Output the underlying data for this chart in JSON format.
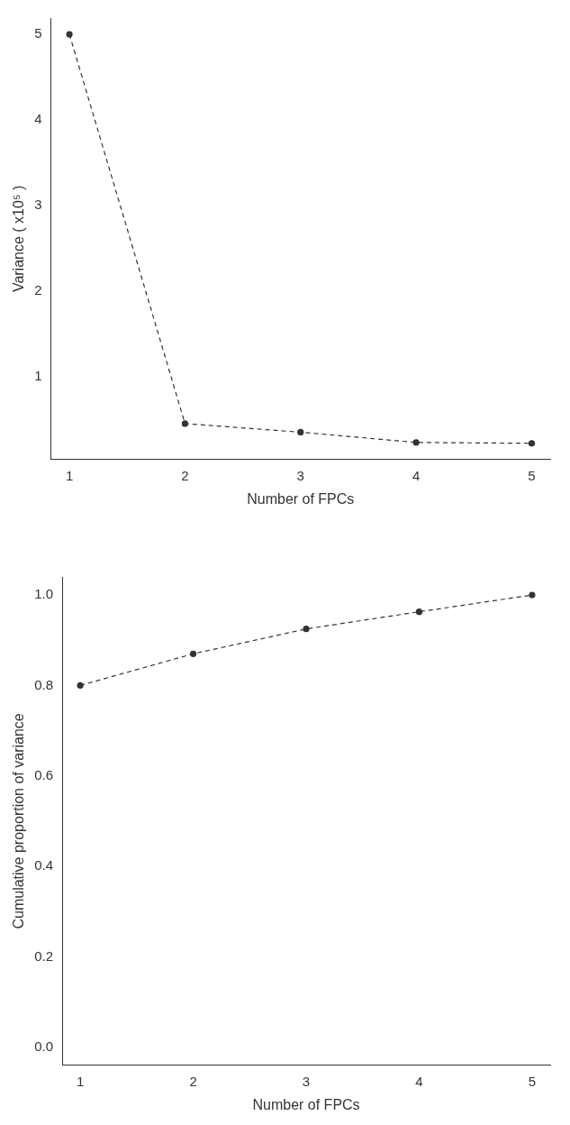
{
  "chart_data": [
    {
      "type": "line",
      "xlabel": "Number of FPCs",
      "ylabel": "Variance ( x10⁵ )",
      "x": [
        1,
        2,
        3,
        4,
        5
      ],
      "series": [
        {
          "color": "#333333",
          "values": [
            5.0,
            0.45,
            0.35,
            0.23,
            0.22
          ]
        }
      ],
      "xlim": [
        0.84,
        5.16
      ],
      "xticks": [
        1,
        2,
        3,
        4,
        5
      ],
      "ylim": [
        0.03,
        5.19
      ],
      "yticks": [
        1,
        2,
        3,
        4,
        5
      ],
      "grid": false,
      "legend": false,
      "marker": "circle",
      "line_style": "dashed"
    },
    {
      "type": "line",
      "xlabel": "Number of FPCs",
      "ylabel": "Cumulative proportion of variance",
      "x": [
        1,
        2,
        3,
        4,
        5
      ],
      "series": [
        {
          "color": "#333333",
          "values": [
            0.8,
            0.87,
            0.925,
            0.963,
            1.0
          ]
        }
      ],
      "xlim": [
        0.84,
        5.16
      ],
      "xticks": [
        1,
        2,
        3,
        4,
        5
      ],
      "ylim": [
        -0.04,
        1.04
      ],
      "yticks": [
        {
          "value": 0,
          "label": "0.0"
        },
        {
          "value": 0.2,
          "label": "0.2"
        },
        {
          "value": 0.4,
          "label": "0.4"
        },
        {
          "value": 0.6,
          "label": "0.6"
        },
        {
          "value": 0.8,
          "label": "0.8"
        },
        {
          "value": 1,
          "label": "1.0"
        }
      ],
      "grid": false,
      "legend": false,
      "marker": "circle",
      "line_style": "dashed"
    }
  ]
}
